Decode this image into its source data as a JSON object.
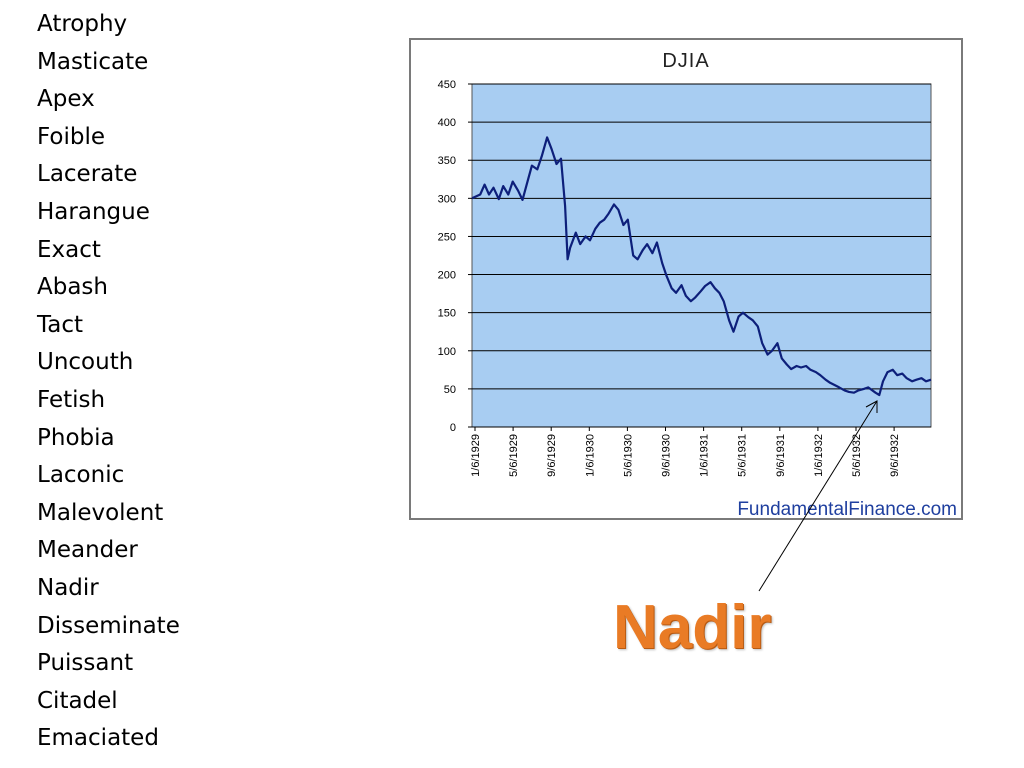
{
  "words": [
    "Atrophy",
    "Masticate",
    "Apex",
    "Foible",
    "Lacerate",
    "Harangue",
    "Exact",
    "Abash",
    "Tact",
    "Uncouth",
    "Fetish",
    "Phobia",
    "Laconic",
    "Malevolent",
    "Meander",
    "Nadir",
    "Disseminate",
    "Puissant",
    "Citadel",
    "Emaciated"
  ],
  "callout": {
    "label": "Nadir",
    "color": "#e97b25"
  },
  "chart_data": {
    "type": "line",
    "title": "DJIA",
    "source": "FundamentalFinance.com",
    "xlabel": "",
    "ylabel": "",
    "ylim": [
      0,
      450
    ],
    "y_ticks": [
      "0",
      "50",
      "100",
      "150",
      "200",
      "250",
      "300",
      "350",
      "400",
      "450"
    ],
    "x_ticks": [
      "1/6/1929",
      "5/6/1929",
      "9/6/1929",
      "1/6/1930",
      "5/6/1930",
      "9/6/1930",
      "1/6/1931",
      "5/6/1931",
      "9/6/1931",
      "1/6/1932",
      "5/6/1932",
      "9/6/1932"
    ],
    "grid": true,
    "plot_background": "#a8cdf2",
    "line_color": "#0d1f7a",
    "series": [
      {
        "x": [
          "1929-01-06",
          "1929-02-01",
          "1929-02-15",
          "1929-03-01",
          "1929-03-15",
          "1929-04-01",
          "1929-04-15",
          "1929-05-01",
          "1929-05-15",
          "1929-06-01",
          "1929-06-15",
          "1929-07-01",
          "1929-07-15",
          "1929-08-01",
          "1929-08-15",
          "1929-09-01",
          "1929-09-15",
          "1929-10-01",
          "1929-10-15",
          "1929-10-28",
          "1929-11-05",
          "1929-11-13",
          "1929-12-01",
          "1929-12-15",
          "1930-01-01",
          "1930-01-15",
          "1930-02-01",
          "1930-02-15",
          "1930-03-01",
          "1930-03-15",
          "1930-04-01",
          "1930-04-15",
          "1930-05-01",
          "1930-05-15",
          "1930-06-01",
          "1930-06-15",
          "1930-07-01",
          "1930-07-15",
          "1930-08-01",
          "1930-08-15",
          "1930-09-01",
          "1930-09-15",
          "1930-10-01",
          "1930-10-15",
          "1930-11-01",
          "1930-11-15",
          "1930-12-01",
          "1930-12-15",
          "1931-01-01",
          "1931-01-15",
          "1931-02-01",
          "1931-02-15",
          "1931-03-01",
          "1931-03-15",
          "1931-04-01",
          "1931-04-15",
          "1931-05-01",
          "1931-05-15",
          "1931-06-01",
          "1931-06-15",
          "1931-07-01",
          "1931-07-15",
          "1931-08-01",
          "1931-08-15",
          "1931-09-01",
          "1931-09-15",
          "1931-10-01",
          "1931-10-15",
          "1931-11-01",
          "1931-11-15",
          "1931-12-01",
          "1931-12-15",
          "1932-01-01",
          "1932-01-15",
          "1932-02-01",
          "1932-02-15",
          "1932-03-01",
          "1932-03-15",
          "1932-04-01",
          "1932-04-15",
          "1932-05-01",
          "1932-05-15",
          "1932-06-01",
          "1932-06-15",
          "1932-07-08",
          "1932-07-20",
          "1932-08-01",
          "1932-08-15",
          "1932-09-01",
          "1932-09-15",
          "1932-10-01",
          "1932-10-15",
          "1932-11-01",
          "1932-11-15",
          "1932-12-01",
          "1932-12-15",
          "1932-12-31"
        ],
        "y": [
          300,
          305,
          318,
          305,
          314,
          299,
          316,
          305,
          322,
          310,
          298,
          322,
          343,
          338,
          355,
          380,
          365,
          345,
          352,
          290,
          220,
          235,
          255,
          240,
          250,
          245,
          260,
          268,
          272,
          280,
          292,
          285,
          265,
          272,
          225,
          220,
          232,
          240,
          228,
          242,
          215,
          198,
          182,
          176,
          186,
          172,
          165,
          170,
          178,
          185,
          190,
          182,
          176,
          165,
          140,
          125,
          145,
          150,
          144,
          140,
          132,
          110,
          95,
          100,
          110,
          90,
          82,
          76,
          80,
          78,
          80,
          75,
          72,
          68,
          62,
          58,
          55,
          52,
          48,
          46,
          45,
          48,
          50,
          52,
          45,
          42,
          60,
          72,
          75,
          68,
          70,
          64,
          60,
          62,
          64,
          60,
          62
        ]
      }
    ]
  }
}
